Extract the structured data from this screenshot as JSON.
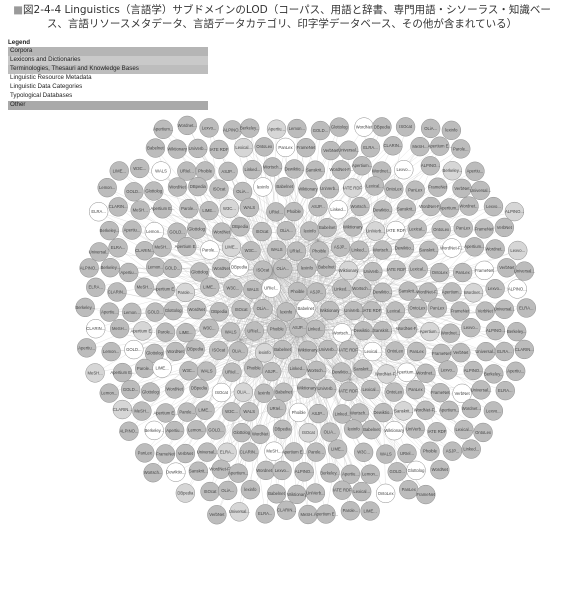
{
  "caption": {
    "marker": "■",
    "text": "図2-4-4 Linguistics（言語学）サブドメインのLOD（コーパス、用語と辞書、専門用語・シソーラス・知識ベース、言語リソースメタデータ、言語データカテゴリ、印字学データベース、その他が含まれている）"
  },
  "legend": {
    "title": "Legend",
    "items": [
      {
        "label": "Corpora",
        "color": "#b5b5b5"
      },
      {
        "label": "Lexicons and Dictionaries",
        "color": "#c9c9c9"
      },
      {
        "label": "Terminologies, Thesauri and Knowledge Bases",
        "color": "#bdbdbd"
      },
      {
        "label": "Linguistic Resource Metadata",
        "color": "#ffffff"
      },
      {
        "label": "Linguistic Data Categories",
        "color": "#ffffff"
      },
      {
        "label": "Typological Databases",
        "color": "#ffffff"
      },
      {
        "label": "Other",
        "color": "#a9a9a9"
      }
    ]
  },
  "node_colors": {
    "default": "#bcbcbc",
    "light": "#d6d6d6",
    "white": "#ffffff",
    "stroke": "#8c8c8c"
  },
  "labels": [
    "Apertium...",
    "Wordnet...",
    "Lexvo...",
    "ALPINO...",
    "Berkeley...",
    "Apertiu...",
    "Lemon...",
    "GOLD...",
    "Glottolog",
    "WordNet",
    "DBpedia",
    "ISOcat",
    "OLiA...",
    "lexinfo",
    "Babelnet",
    "Wiktionary",
    "UniVerb...",
    "IATE RDF",
    "Lexical...",
    "OntoLex",
    "PanLex",
    "FrameNet",
    "VerbNet",
    "Universal...",
    "ELRA...",
    "CLARIN...",
    "MeSH...",
    "Apertium E...",
    "Parole...",
    "LIME...",
    "W3C...",
    "WALS",
    "URIel...",
    "Phoible",
    "ASJP...",
    "Linked...",
    "Wortsch...",
    "Dewiktio...",
    "Sanskrit...",
    "WordNet-F..."
  ]
}
